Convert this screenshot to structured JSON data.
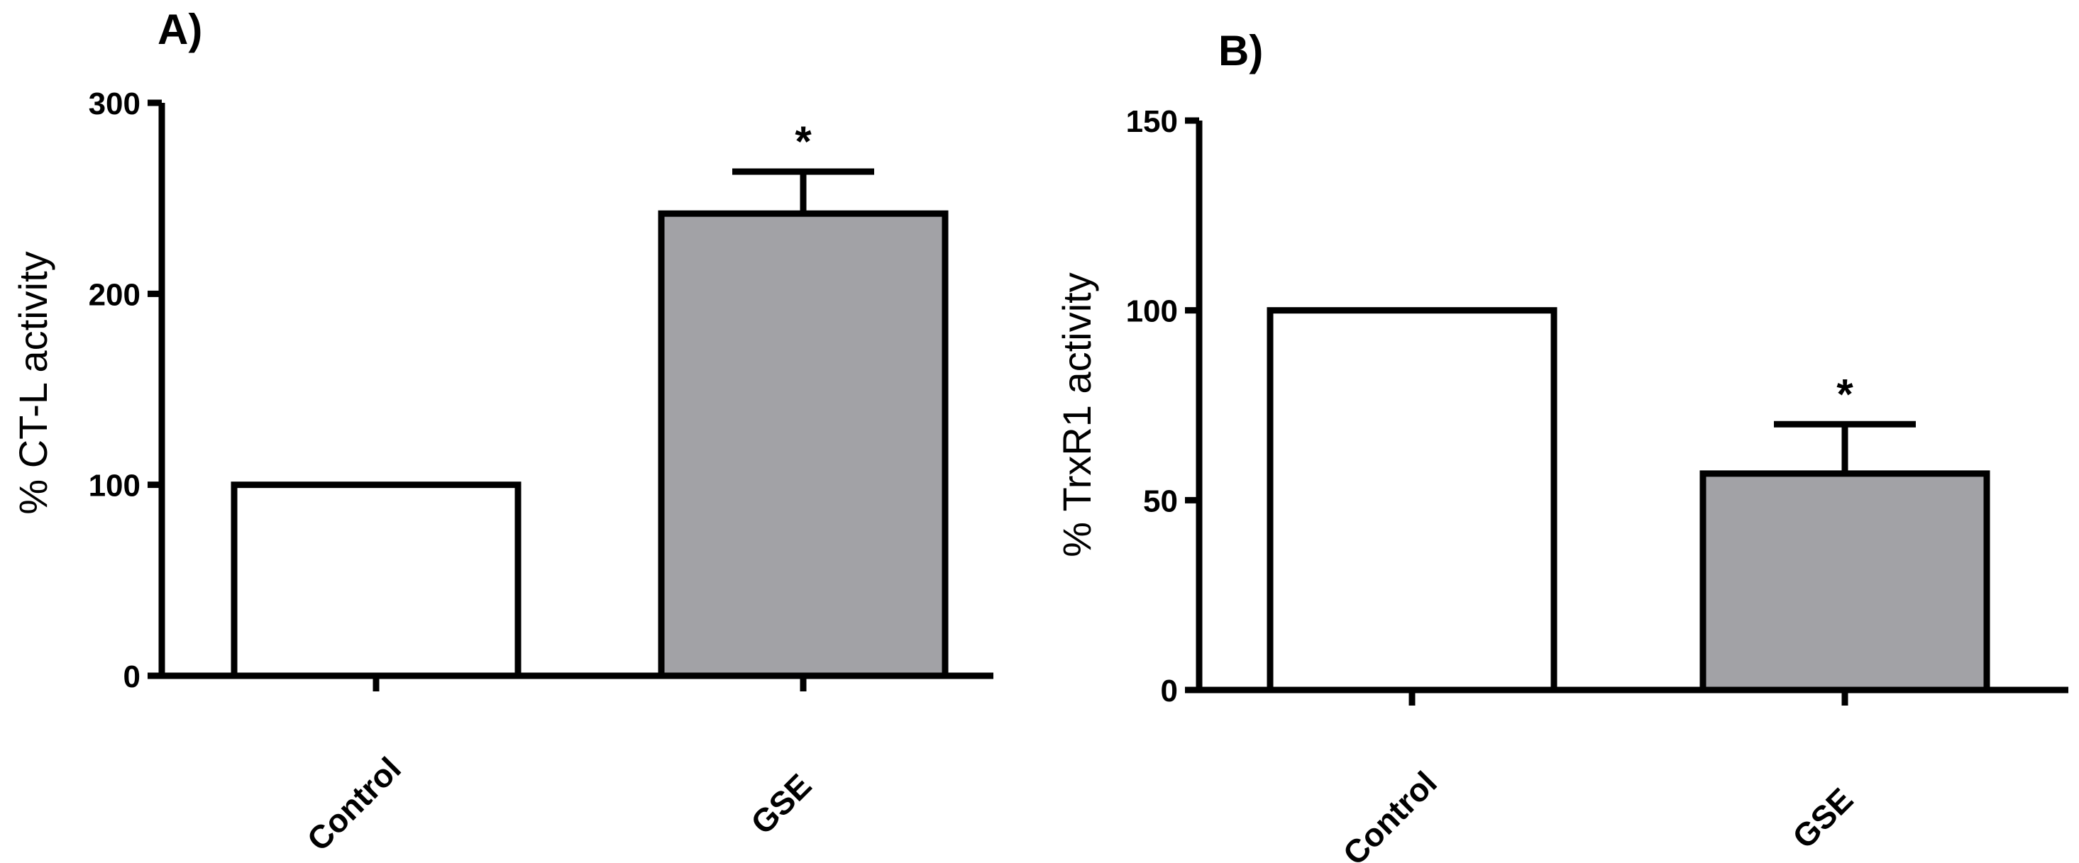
{
  "chart_data": [
    {
      "panel": "A)",
      "type": "bar",
      "categories": [
        "Control",
        "GSE"
      ],
      "values": [
        100,
        242
      ],
      "errors": [
        0,
        22
      ],
      "significance": [
        "",
        "*"
      ],
      "bar_colors": [
        "#ffffff",
        "#a2a2a6"
      ],
      "ylabel": "% CT-L activity",
      "ylim": [
        0,
        300
      ],
      "yticks": [
        0,
        100,
        200,
        300
      ],
      "grid": false
    },
    {
      "panel": "B)",
      "type": "bar",
      "categories": [
        "Control",
        "GSE"
      ],
      "values": [
        100,
        57
      ],
      "errors": [
        0,
        13
      ],
      "significance": [
        "",
        "*"
      ],
      "bar_colors": [
        "#ffffff",
        "#a2a2a6"
      ],
      "ylabel": "% TrxR1 activity",
      "ylim": [
        0,
        150
      ],
      "yticks": [
        0,
        50,
        100,
        150
      ],
      "grid": false
    }
  ]
}
